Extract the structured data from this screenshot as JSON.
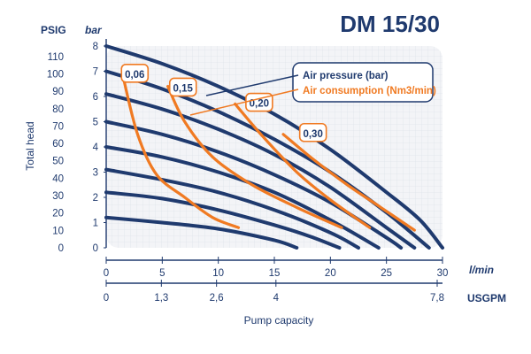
{
  "chart_data": {
    "type": "line",
    "title": "DM 15/30",
    "y_units_left": "PSIG",
    "y_units_right": "bar",
    "ylabel": "Total head",
    "xlabel": "Pump capacity",
    "x_units": "l/min",
    "x2_units": "USGPM",
    "xlim": [
      0,
      30
    ],
    "ylim": [
      0,
      8
    ],
    "x_ticks": [
      "0",
      "5",
      "10",
      "15",
      "20",
      "25",
      "30"
    ],
    "x2_ticks": [
      {
        "value": 0,
        "label": "0"
      },
      {
        "value": 1.3,
        "label": "1,3"
      },
      {
        "value": 2.6,
        "label": "2,6"
      },
      {
        "value": 4,
        "label": "4"
      },
      {
        "value": 7.8,
        "label": "7,8"
      }
    ],
    "y_bar_ticks": [
      "0",
      "1",
      "2",
      "3",
      "4",
      "5",
      "6",
      "7",
      "8"
    ],
    "y_psig_ticks": [
      "0",
      "10",
      "20",
      "30",
      "40",
      "50",
      "60",
      "70",
      "80",
      "90",
      "100",
      "110"
    ],
    "legend": [
      {
        "name": "Air pressure (bar)",
        "color": "#1f3a6e"
      },
      {
        "name": "Air consumption (Nm3/min)",
        "color": "#f07a22"
      }
    ],
    "pressure_series": [
      {
        "name": "8 bar",
        "x": [
          0,
          5,
          10,
          15,
          20,
          25,
          28,
          30
        ],
        "y": [
          8,
          7.3,
          6.4,
          5.3,
          3.9,
          2.2,
          1.1,
          0
        ]
      },
      {
        "name": "7 bar",
        "x": [
          0,
          5,
          10,
          15,
          20,
          25,
          28.8
        ],
        "y": [
          7,
          6.3,
          5.4,
          4.3,
          3,
          1.4,
          0
        ]
      },
      {
        "name": "6 bar",
        "x": [
          0,
          5,
          10,
          15,
          20,
          25,
          27.5
        ],
        "y": [
          6.1,
          5.5,
          4.7,
          3.7,
          2.4,
          0.8,
          0
        ]
      },
      {
        "name": "5 bar",
        "x": [
          0,
          5,
          10,
          15,
          20,
          25,
          26.3
        ],
        "y": [
          5,
          4.5,
          3.8,
          2.9,
          1.8,
          0.4,
          0
        ]
      },
      {
        "name": "4 bar",
        "x": [
          0,
          5,
          10,
          15,
          20,
          24.3
        ],
        "y": [
          4,
          3.6,
          3,
          2.2,
          1.1,
          0
        ]
      },
      {
        "name": "3 bar",
        "x": [
          0,
          5,
          10,
          15,
          20,
          22.5
        ],
        "y": [
          3.1,
          2.7,
          2.2,
          1.5,
          0.6,
          0
        ]
      },
      {
        "name": "2 bar",
        "x": [
          0,
          5,
          10,
          15,
          18.2,
          20.8
        ],
        "y": [
          2.2,
          1.95,
          1.5,
          0.9,
          0.45,
          0
        ]
      },
      {
        "name": "1 bar",
        "x": [
          0,
          5,
          10,
          15,
          17
        ],
        "y": [
          1.2,
          1,
          0.75,
          0.3,
          0
        ]
      }
    ],
    "consumption_series": [
      {
        "name": "0,06",
        "x": [
          1.5,
          2.8,
          4.5,
          7,
          9.5,
          11.8
        ],
        "y": [
          6.8,
          4.5,
          2.9,
          2,
          1.2,
          0.8
        ]
      },
      {
        "name": "0,15",
        "x": [
          5.5,
          7,
          9.5,
          13,
          17,
          21
        ],
        "y": [
          6.4,
          5,
          3.6,
          2.5,
          1.6,
          0.8
        ]
      },
      {
        "name": "0,20",
        "x": [
          11.5,
          14,
          17,
          20,
          23.5
        ],
        "y": [
          5.7,
          4.4,
          3,
          1.9,
          0.8
        ]
      },
      {
        "name": "0,30",
        "x": [
          15.8,
          18.5,
          21.5,
          24.5,
          27.5
        ],
        "y": [
          4.5,
          3.5,
          2.5,
          1.6,
          0.7
        ]
      }
    ],
    "curve_labels": [
      {
        "text": "0,06",
        "x": 1.6,
        "y": 6.85
      },
      {
        "text": "0,15",
        "x": 5.9,
        "y": 6.3
      },
      {
        "text": "0,20",
        "x": 12.7,
        "y": 5.7
      },
      {
        "text": "0,30",
        "x": 17.5,
        "y": 4.5
      }
    ],
    "grid": true,
    "legend_placement": "top-right"
  }
}
